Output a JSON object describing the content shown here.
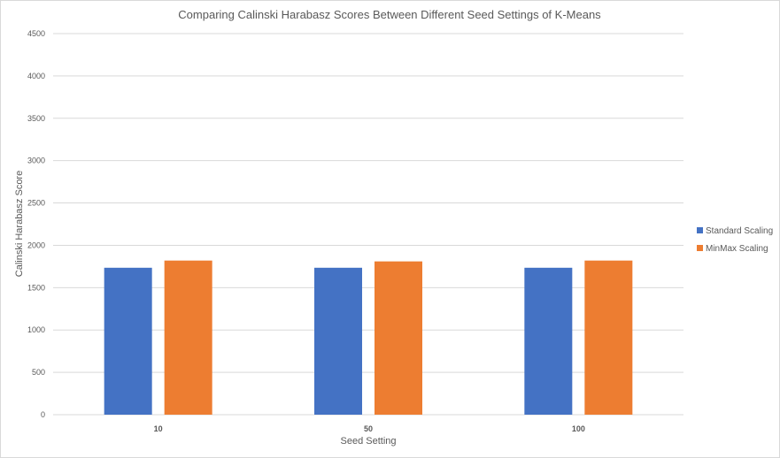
{
  "chart_data": {
    "type": "bar",
    "title": "Comparing  Calinski  Harabasz Scores Between Different Seed Settings of K-Means",
    "xlabel": "Seed Setting",
    "ylabel": "Calinski Harabasz Score",
    "categories": [
      "10",
      "50",
      "100"
    ],
    "series": [
      {
        "name": "Standard Scaling",
        "color": "#4472c4",
        "values": [
          1735,
          1735,
          1735
        ]
      },
      {
        "name": "MinMax Scaling",
        "color": "#ed7d31",
        "values": [
          1820,
          1810,
          1820
        ]
      }
    ],
    "ylim": [
      0,
      4500
    ],
    "yticks": [
      "0",
      "500",
      "1000",
      "1500",
      "2000",
      "2500",
      "3000",
      "3500",
      "4000",
      "4500"
    ],
    "grid": true,
    "legend_position": "right"
  }
}
